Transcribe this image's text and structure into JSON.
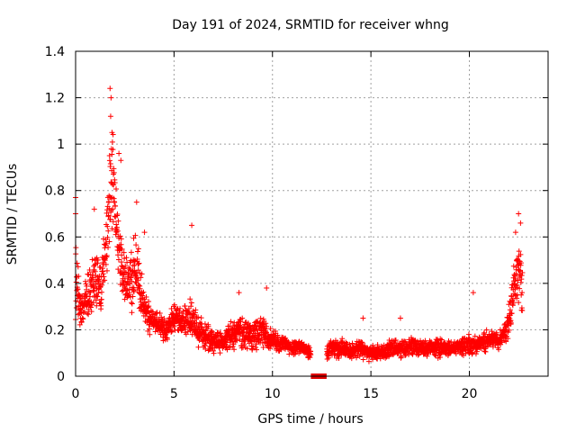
{
  "chart_data": {
    "type": "scatter",
    "title": "Day 191 of 2024, SRMTID for receiver whng",
    "xlabel": "GPS time / hours",
    "ylabel": "SRMTID / TECUs",
    "xlim": [
      0,
      24
    ],
    "ylim": [
      0,
      1.4
    ],
    "xticks": [
      0,
      5,
      10,
      15,
      20
    ],
    "xtick_labels": [
      "0",
      "5",
      "10",
      "15",
      "20"
    ],
    "yticks": [
      0,
      0.2,
      0.4,
      0.6,
      0.8,
      1,
      1.2,
      1.4
    ],
    "ytick_labels": [
      "0",
      "0.2",
      "0.4",
      "0.6",
      "0.8",
      "1",
      "1.2",
      "1.4"
    ],
    "grid": true,
    "marker": "+",
    "series": [
      {
        "name": "SRMTID",
        "color": "#ff0000",
        "envelope": {
          "description": "approximate mean level and spread of the dense + markers, read off the axes",
          "x": [
            0.0,
            0.25,
            0.5,
            0.8,
            1.0,
            1.3,
            1.6,
            1.75,
            1.9,
            2.1,
            2.4,
            2.7,
            3.0,
            3.2,
            3.5,
            3.8,
            4.2,
            4.6,
            5.0,
            5.4,
            5.8,
            6.2,
            6.6,
            7.0,
            7.5,
            8.0,
            8.3,
            8.6,
            9.0,
            9.4,
            9.8,
            10.2,
            10.6,
            11.0,
            11.5,
            11.9,
            12.6,
            13.0,
            13.5,
            14.0,
            14.5,
            15.0,
            15.5,
            16.0,
            16.5,
            17.0,
            17.5,
            18.0,
            18.5,
            19.0,
            19.5,
            20.0,
            20.5,
            21.0,
            21.5,
            21.9,
            22.2,
            22.5,
            22.7
          ],
          "y": [
            0.42,
            0.28,
            0.34,
            0.36,
            0.42,
            0.4,
            0.58,
            0.78,
            0.85,
            0.6,
            0.45,
            0.4,
            0.48,
            0.42,
            0.3,
            0.24,
            0.22,
            0.2,
            0.25,
            0.24,
            0.25,
            0.2,
            0.17,
            0.16,
            0.15,
            0.18,
            0.2,
            0.18,
            0.17,
            0.2,
            0.16,
            0.15,
            0.14,
            0.12,
            0.13,
            0.1,
            0.1,
            0.12,
            0.12,
            0.11,
            0.12,
            0.1,
            0.1,
            0.12,
            0.12,
            0.13,
            0.12,
            0.12,
            0.12,
            0.12,
            0.13,
            0.13,
            0.14,
            0.15,
            0.16,
            0.2,
            0.35,
            0.45,
            0.4
          ],
          "spread": [
            0.25,
            0.12,
            0.12,
            0.15,
            0.2,
            0.16,
            0.2,
            0.3,
            0.3,
            0.22,
            0.14,
            0.16,
            0.25,
            0.16,
            0.1,
            0.08,
            0.07,
            0.07,
            0.09,
            0.08,
            0.1,
            0.09,
            0.08,
            0.07,
            0.06,
            0.09,
            0.09,
            0.08,
            0.09,
            0.1,
            0.07,
            0.06,
            0.05,
            0.04,
            0.04,
            0.04,
            0.04,
            0.05,
            0.06,
            0.05,
            0.06,
            0.05,
            0.04,
            0.05,
            0.05,
            0.06,
            0.05,
            0.04,
            0.05,
            0.04,
            0.05,
            0.06,
            0.05,
            0.06,
            0.06,
            0.08,
            0.14,
            0.2,
            0.18
          ]
        },
        "notable_points": [
          {
            "x": 1.75,
            "y": 1.24
          },
          {
            "x": 1.8,
            "y": 1.2
          },
          {
            "x": 1.78,
            "y": 1.12
          },
          {
            "x": 1.85,
            "y": 1.05
          },
          {
            "x": 2.2,
            "y": 0.96
          },
          {
            "x": 2.3,
            "y": 0.93
          },
          {
            "x": 3.1,
            "y": 0.75
          },
          {
            "x": 0.95,
            "y": 0.72
          },
          {
            "x": 0.0,
            "y": 0.77
          },
          {
            "x": 0.0,
            "y": 0.7
          },
          {
            "x": 5.9,
            "y": 0.65
          },
          {
            "x": 3.5,
            "y": 0.62
          },
          {
            "x": 22.5,
            "y": 0.7
          },
          {
            "x": 22.6,
            "y": 0.66
          },
          {
            "x": 22.35,
            "y": 0.62
          },
          {
            "x": 20.2,
            "y": 0.36
          },
          {
            "x": 9.7,
            "y": 0.38
          },
          {
            "x": 8.3,
            "y": 0.36
          },
          {
            "x": 14.6,
            "y": 0.25
          },
          {
            "x": 16.5,
            "y": 0.25
          }
        ]
      },
      {
        "name": "data-gap",
        "color": "#e00000",
        "type": "segment",
        "x": [
          11.95,
          12.75
        ],
        "y": [
          0,
          0
        ]
      }
    ]
  }
}
